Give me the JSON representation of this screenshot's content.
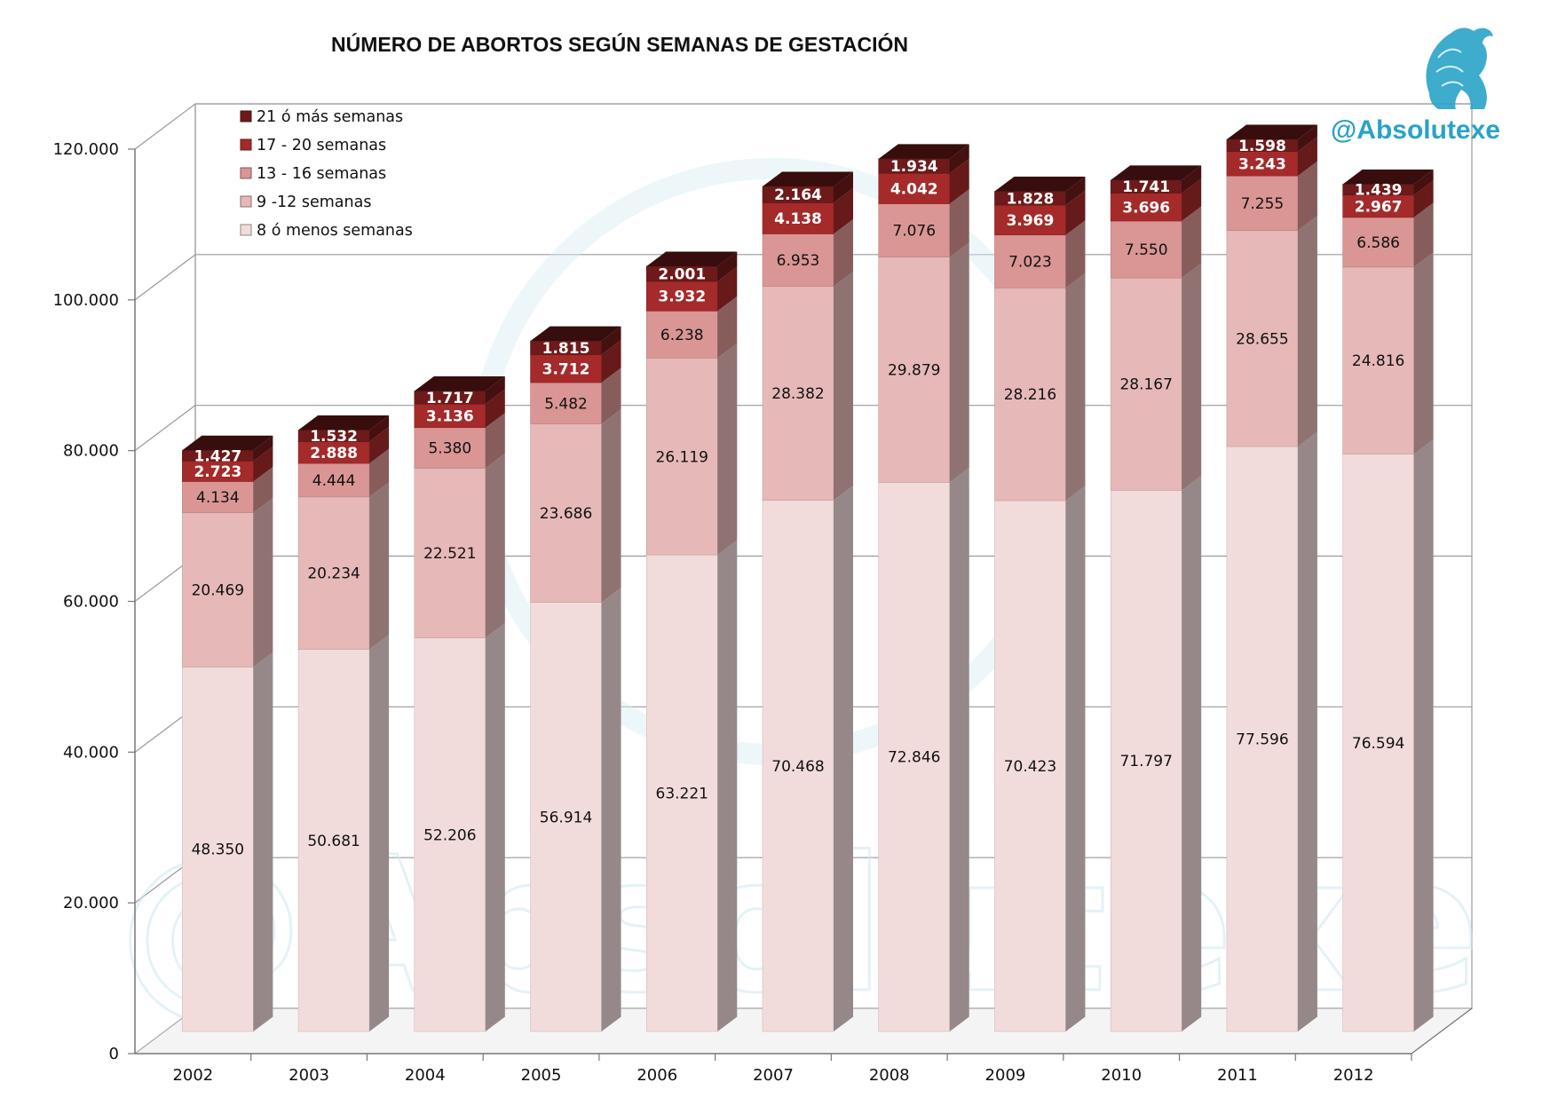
{
  "chart_data": {
    "type": "bar",
    "stacked": true,
    "title": "NÚMERO DE ABORTOS SEGÚN SEMANAS DE GESTACIÓN",
    "categories": [
      "2002",
      "2003",
      "2004",
      "2005",
      "2006",
      "2007",
      "2008",
      "2009",
      "2010",
      "2011",
      "2012"
    ],
    "series": [
      {
        "name": "8 ó menos semanas",
        "color": "#f2dcdb",
        "label_color": "#111111",
        "values": [
          48350,
          50681,
          52206,
          56914,
          63221,
          70468,
          72846,
          70423,
          71797,
          77596,
          76594
        ],
        "labels": [
          "48.350",
          "50.681",
          "52.206",
          "56.914",
          "63.221",
          "70.468",
          "72.846",
          "70.423",
          "71.797",
          "77.596",
          "76.594"
        ]
      },
      {
        "name": "9 -12 semanas",
        "color": "#e6b9b8",
        "label_color": "#111111",
        "values": [
          20469,
          20234,
          22521,
          23686,
          26119,
          28382,
          29879,
          28216,
          28167,
          28655,
          24816
        ],
        "labels": [
          "20.469",
          "20.234",
          "22.521",
          "23.686",
          "26.119",
          "28.382",
          "29.879",
          "28.216",
          "28.167",
          "28.655",
          "24.816"
        ]
      },
      {
        "name": "13 - 16 semanas",
        "color": "#d99694",
        "label_color": "#111111",
        "values": [
          4134,
          4444,
          5380,
          5482,
          6238,
          6953,
          7076,
          7023,
          7550,
          7255,
          6586
        ],
        "labels": [
          "4.134",
          "4.444",
          "5.380",
          "5.482",
          "6.238",
          "6.953",
          "7.076",
          "7.023",
          "7.550",
          "7.255",
          "6.586"
        ]
      },
      {
        "name": "17 - 20 semanas",
        "color": "#a52a2a",
        "label_color": "#ffffff",
        "values": [
          2723,
          2888,
          3136,
          3712,
          3932,
          4138,
          4042,
          3969,
          3696,
          3243,
          2967
        ],
        "labels": [
          "2.723",
          "2.888",
          "3.136",
          "3.712",
          "3.932",
          "4.138",
          "4.042",
          "3.969",
          "3.696",
          "3.243",
          "2.967"
        ]
      },
      {
        "name": "21 ó más semanas",
        "color": "#6e1a1a",
        "label_color": "#ffffff",
        "values": [
          1427,
          1532,
          1717,
          1815,
          2001,
          2164,
          1934,
          1828,
          1741,
          1598,
          1439
        ],
        "labels": [
          "1.427",
          "1.532",
          "1.717",
          "1.815",
          "2.001",
          "2.164",
          "1.934",
          "1.828",
          "1.741",
          "1.598",
          "1.439"
        ]
      }
    ],
    "ylim": [
      0,
      120000
    ],
    "yticks": [
      0,
      20000,
      40000,
      60000,
      80000,
      100000,
      120000
    ],
    "ytick_labels": [
      "0",
      "20.000",
      "40.000",
      "60.000",
      "80.000",
      "100.000",
      "120.000"
    ],
    "grid": true,
    "legend": "top-left, inside plot area, listed top to bottom from last series to first",
    "legend_order": [
      "21 ó más semanas",
      "17 - 20 semanas",
      "13 - 16 semanas",
      "9 -12 semanas",
      "8 ó menos semanas"
    ],
    "style": "3D stacked columns"
  },
  "branding": {
    "handle": "@Absolutexe",
    "logo_icon": "griffin-logo-icon",
    "watermark_text": "@Absolutexe",
    "accent_color": "#29a3c7"
  }
}
